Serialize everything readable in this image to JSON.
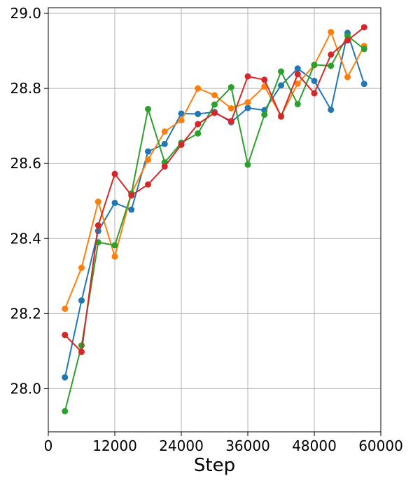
{
  "chart_data": {
    "type": "line",
    "title": "",
    "xlabel": "Step",
    "ylabel": "",
    "xlim": [
      0,
      60000
    ],
    "ylim": [
      27.885,
      29.015
    ],
    "xticks": [
      0,
      12000,
      24000,
      36000,
      48000,
      60000
    ],
    "yticks": [
      28.0,
      28.2,
      28.4,
      28.6,
      28.8,
      29.0
    ],
    "xtick_labels": [
      "0",
      "12000",
      "24000",
      "36000",
      "48000",
      "60000"
    ],
    "ytick_labels": [
      "28.0",
      "28.2",
      "28.4",
      "28.6",
      "28.8",
      "29.0"
    ],
    "grid": true,
    "legend": "none",
    "x": [
      3000,
      6000,
      9000,
      12000,
      15000,
      18000,
      21000,
      24000,
      27000,
      30000,
      33000,
      36000,
      39000,
      42000,
      45000,
      48000,
      51000,
      54000,
      57000
    ],
    "series": [
      {
        "color": "#1f77b4",
        "values": [
          28.03,
          28.235,
          28.42,
          28.495,
          28.477,
          28.632,
          28.652,
          28.733,
          28.732,
          28.737,
          28.71,
          28.748,
          28.742,
          28.808,
          28.853,
          28.82,
          28.743,
          28.948,
          28.812
        ]
      },
      {
        "color": "#ff7f0e",
        "values": [
          28.213,
          28.322,
          28.498,
          28.352,
          28.52,
          28.61,
          28.685,
          28.715,
          28.8,
          28.782,
          28.747,
          28.763,
          28.805,
          28.727,
          28.813,
          28.862,
          28.95,
          28.83,
          28.913
        ]
      },
      {
        "color": "#2ca02c",
        "values": [
          27.94,
          28.115,
          28.39,
          28.382,
          28.52,
          28.745,
          28.603,
          28.655,
          28.68,
          28.757,
          28.803,
          28.597,
          28.73,
          28.845,
          28.758,
          28.863,
          28.86,
          28.94,
          28.905
        ]
      },
      {
        "color": "#d62728",
        "values": [
          28.143,
          28.098,
          28.435,
          28.572,
          28.515,
          28.544,
          28.592,
          28.65,
          28.705,
          28.735,
          28.713,
          28.832,
          28.823,
          28.725,
          28.838,
          28.787,
          28.89,
          28.928,
          28.963
        ]
      }
    ]
  }
}
